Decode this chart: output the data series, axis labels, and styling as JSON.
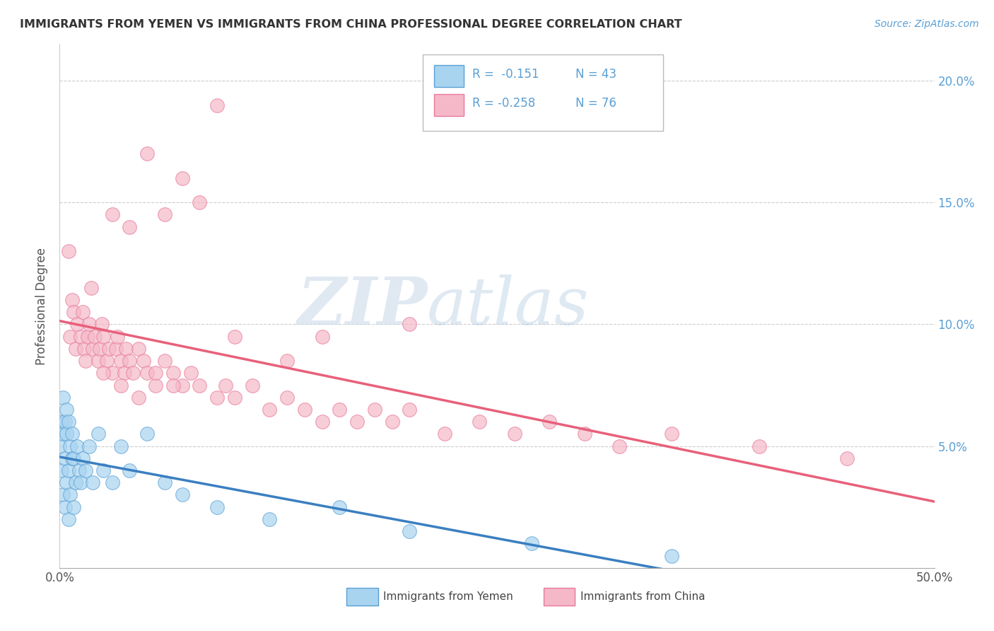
{
  "title": "IMMIGRANTS FROM YEMEN VS IMMIGRANTS FROM CHINA PROFESSIONAL DEGREE CORRELATION CHART",
  "source": "Source: ZipAtlas.com",
  "ylabel": "Professional Degree",
  "xlim": [
    0.0,
    0.5
  ],
  "ylim": [
    0.0,
    0.215
  ],
  "yticks": [
    0.0,
    0.05,
    0.1,
    0.15,
    0.2
  ],
  "ytick_labels_right": [
    "",
    "5.0%",
    "10.0%",
    "15.0%",
    "20.0%"
  ],
  "xticks": [
    0.0,
    0.5
  ],
  "xtick_labels": [
    "0.0%",
    "50.0%"
  ],
  "legend_r1": "R =  -0.151",
  "legend_n1": "N = 43",
  "legend_r2": "R = -0.258",
  "legend_n2": "N = 76",
  "color_yemen": "#a8d4f0",
  "color_china": "#f5b8c8",
  "edge_color_yemen": "#5b9fd4",
  "edge_color_china": "#e8789a",
  "line_color_yemen": "#3a7fc1",
  "line_color_china": "#e8607a",
  "watermark_zip": "ZIP",
  "watermark_atlas": "atlas",
  "background_color": "#ffffff",
  "scatter_alpha": 0.7,
  "legend_label_yemen": "Immigrants from Yemen",
  "legend_label_china": "Immigrants from China",
  "yemen_x": [
    0.0,
    0.001,
    0.001,
    0.002,
    0.002,
    0.002,
    0.003,
    0.003,
    0.003,
    0.004,
    0.004,
    0.004,
    0.005,
    0.005,
    0.005,
    0.006,
    0.006,
    0.007,
    0.007,
    0.008,
    0.008,
    0.009,
    0.01,
    0.011,
    0.012,
    0.013,
    0.015,
    0.017,
    0.019,
    0.022,
    0.025,
    0.03,
    0.035,
    0.04,
    0.05,
    0.06,
    0.07,
    0.09,
    0.12,
    0.16,
    0.2,
    0.27,
    0.35
  ],
  "yemen_y": [
    0.05,
    0.06,
    0.04,
    0.03,
    0.055,
    0.07,
    0.045,
    0.025,
    0.06,
    0.035,
    0.055,
    0.065,
    0.02,
    0.04,
    0.06,
    0.03,
    0.05,
    0.045,
    0.055,
    0.025,
    0.045,
    0.035,
    0.05,
    0.04,
    0.035,
    0.045,
    0.04,
    0.05,
    0.035,
    0.055,
    0.04,
    0.035,
    0.05,
    0.04,
    0.055,
    0.035,
    0.03,
    0.025,
    0.02,
    0.025,
    0.015,
    0.01,
    0.005
  ],
  "china_x": [
    0.005,
    0.006,
    0.007,
    0.008,
    0.009,
    0.01,
    0.012,
    0.013,
    0.014,
    0.015,
    0.016,
    0.017,
    0.018,
    0.019,
    0.02,
    0.022,
    0.023,
    0.024,
    0.025,
    0.027,
    0.028,
    0.03,
    0.032,
    0.033,
    0.035,
    0.037,
    0.038,
    0.04,
    0.042,
    0.045,
    0.048,
    0.05,
    0.055,
    0.06,
    0.065,
    0.07,
    0.075,
    0.08,
    0.09,
    0.095,
    0.1,
    0.11,
    0.12,
    0.13,
    0.14,
    0.15,
    0.16,
    0.17,
    0.18,
    0.19,
    0.2,
    0.22,
    0.24,
    0.26,
    0.28,
    0.3,
    0.32,
    0.35,
    0.4,
    0.45,
    0.03,
    0.04,
    0.05,
    0.06,
    0.07,
    0.08,
    0.09,
    0.1,
    0.15,
    0.2,
    0.025,
    0.035,
    0.045,
    0.055,
    0.065,
    0.13
  ],
  "china_y": [
    0.13,
    0.095,
    0.11,
    0.105,
    0.09,
    0.1,
    0.095,
    0.105,
    0.09,
    0.085,
    0.095,
    0.1,
    0.115,
    0.09,
    0.095,
    0.085,
    0.09,
    0.1,
    0.095,
    0.085,
    0.09,
    0.08,
    0.09,
    0.095,
    0.085,
    0.08,
    0.09,
    0.085,
    0.08,
    0.09,
    0.085,
    0.08,
    0.075,
    0.085,
    0.08,
    0.075,
    0.08,
    0.075,
    0.07,
    0.075,
    0.07,
    0.075,
    0.065,
    0.07,
    0.065,
    0.06,
    0.065,
    0.06,
    0.065,
    0.06,
    0.065,
    0.055,
    0.06,
    0.055,
    0.06,
    0.055,
    0.05,
    0.055,
    0.05,
    0.045,
    0.145,
    0.14,
    0.17,
    0.145,
    0.16,
    0.15,
    0.19,
    0.095,
    0.095,
    0.1,
    0.08,
    0.075,
    0.07,
    0.08,
    0.075,
    0.085
  ],
  "line_yemen_x0": 0.0,
  "line_yemen_x1": 0.5,
  "line_china_x0": 0.0,
  "line_china_x1": 0.5
}
